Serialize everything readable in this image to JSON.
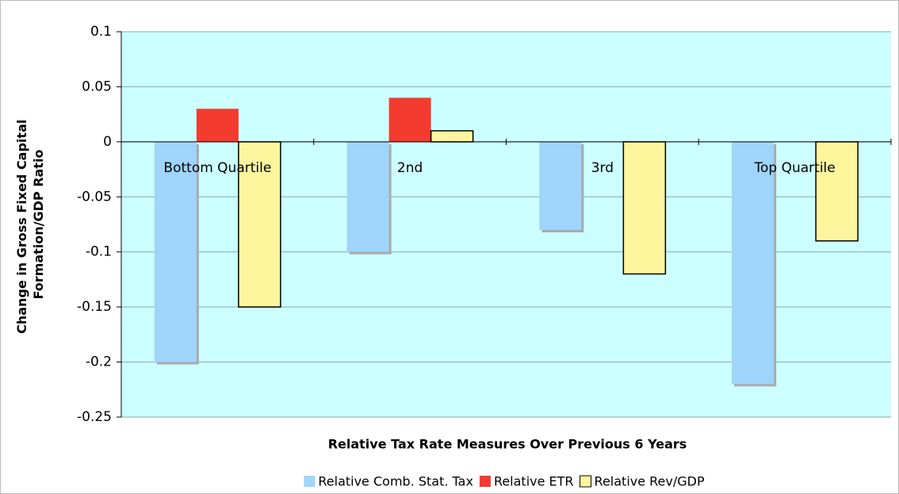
{
  "chart_data": {
    "type": "bar",
    "y_label": [
      "Change in Gross Fixed Capital",
      "Formation/GDP Ratio"
    ],
    "x_label": "Relative Tax Rate Measures Over Previous 6 Years",
    "categories": [
      "Bottom Quartile",
      "2nd",
      "3rd",
      "Top Quartile"
    ],
    "series": [
      {
        "name": "Relative Comb. Stat. Tax",
        "color": "#9fd4fb",
        "values": [
          -0.2,
          -0.1,
          -0.08,
          -0.22
        ]
      },
      {
        "name": "Relative ETR",
        "color": "#f33b2f",
        "values": [
          0.03,
          0.04,
          0,
          0
        ]
      },
      {
        "name": "Relative Rev/GDP",
        "color": "#fff59d",
        "values": [
          -0.15,
          0.01,
          -0.12,
          -0.09
        ]
      }
    ],
    "ylim": [
      -0.25,
      0.1
    ],
    "yticks": [
      0.1,
      0.05,
      0,
      -0.05,
      -0.1,
      -0.15,
      -0.2,
      -0.25
    ],
    "grid": true,
    "plot_background": "#ccffff",
    "legend": "bottom"
  }
}
